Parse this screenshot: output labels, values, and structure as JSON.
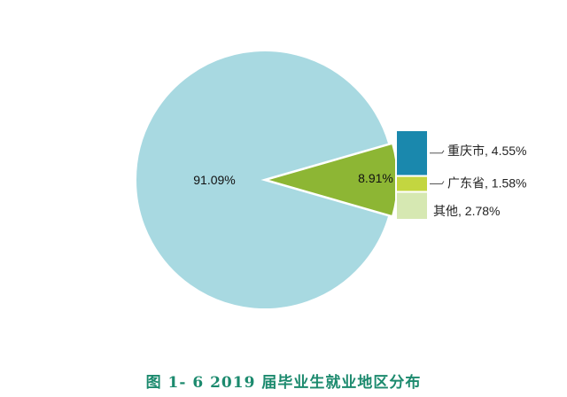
{
  "chart_data": {
    "type": "pie",
    "title": "",
    "caption": "图 1- 6    2019 届毕业生就业地区分布",
    "slices": [
      {
        "name": "",
        "value": 91.09,
        "label": "91.09%",
        "color": "#a8d9e1"
      },
      {
        "name": "",
        "value": 8.91,
        "label": "8.91%",
        "color": "#8db634"
      }
    ],
    "breakdown_of": "8.91%",
    "breakdown": [
      {
        "name": "重庆市",
        "value": 4.55,
        "label": "重庆市, 4.55%",
        "color": "#1a88ad"
      },
      {
        "name": "广东省",
        "value": 1.58,
        "label": "广东省, 1.58%",
        "color": "#c3d640"
      },
      {
        "name": "其他",
        "value": 2.78,
        "label": "其他, 2.78%",
        "color": "#d6e8b2"
      }
    ]
  }
}
